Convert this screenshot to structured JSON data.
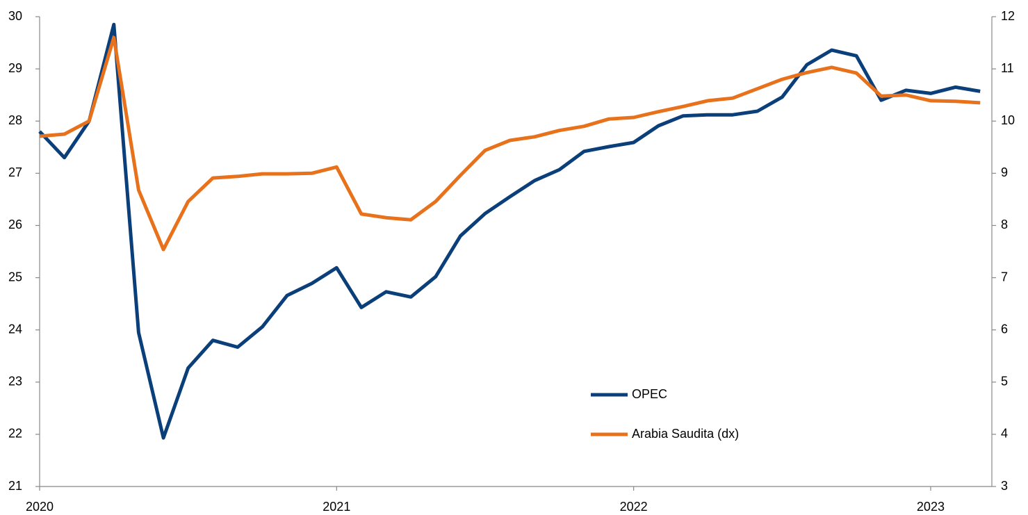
{
  "chart_data": {
    "type": "line",
    "categories": [
      "2020",
      null,
      null,
      null,
      null,
      null,
      null,
      null,
      null,
      null,
      null,
      null,
      "2021",
      null,
      null,
      null,
      null,
      null,
      null,
      null,
      null,
      null,
      null,
      null,
      "2022",
      null,
      null,
      null,
      null,
      null,
      null,
      null,
      null,
      null,
      null,
      null,
      "2023",
      null,
      null
    ],
    "series": [
      {
        "name": "OPEC",
        "color": "#0b3f7a",
        "axis": "y",
        "values": [
          27.8,
          27.3,
          28.0,
          29.85,
          23.95,
          21.93,
          23.27,
          23.8,
          23.67,
          24.06,
          24.66,
          24.89,
          25.19,
          24.43,
          24.73,
          24.63,
          25.02,
          25.8,
          26.23,
          26.55,
          26.86,
          27.07,
          27.42,
          27.51,
          27.59,
          27.91,
          28.1,
          28.12,
          28.12,
          28.19,
          28.46,
          29.08,
          29.36,
          29.25,
          28.4,
          28.59,
          28.53,
          28.65,
          28.57
        ]
      },
      {
        "name": "Arabia Saudita (dx)",
        "color": "#e8711c",
        "axis": "y2",
        "values": [
          9.71,
          9.75,
          10.0,
          11.6,
          8.68,
          7.54,
          8.46,
          8.91,
          8.94,
          8.99,
          8.99,
          9.0,
          9.12,
          8.22,
          8.15,
          8.11,
          8.46,
          8.96,
          9.44,
          9.63,
          9.7,
          9.82,
          9.9,
          10.04,
          10.07,
          10.18,
          10.28,
          10.39,
          10.44,
          10.62,
          10.8,
          10.93,
          11.03,
          10.92,
          10.48,
          10.5,
          10.39,
          10.38,
          10.35
        ]
      }
    ],
    "ylim": [
      21,
      30
    ],
    "yticks": [
      21,
      22,
      23,
      24,
      25,
      26,
      27,
      28,
      29,
      30
    ],
    "y2lim": [
      3,
      12
    ],
    "y2ticks": [
      3,
      4,
      5,
      6,
      7,
      8,
      9,
      10,
      11,
      12
    ],
    "grid": false,
    "legend": "lower-right"
  }
}
